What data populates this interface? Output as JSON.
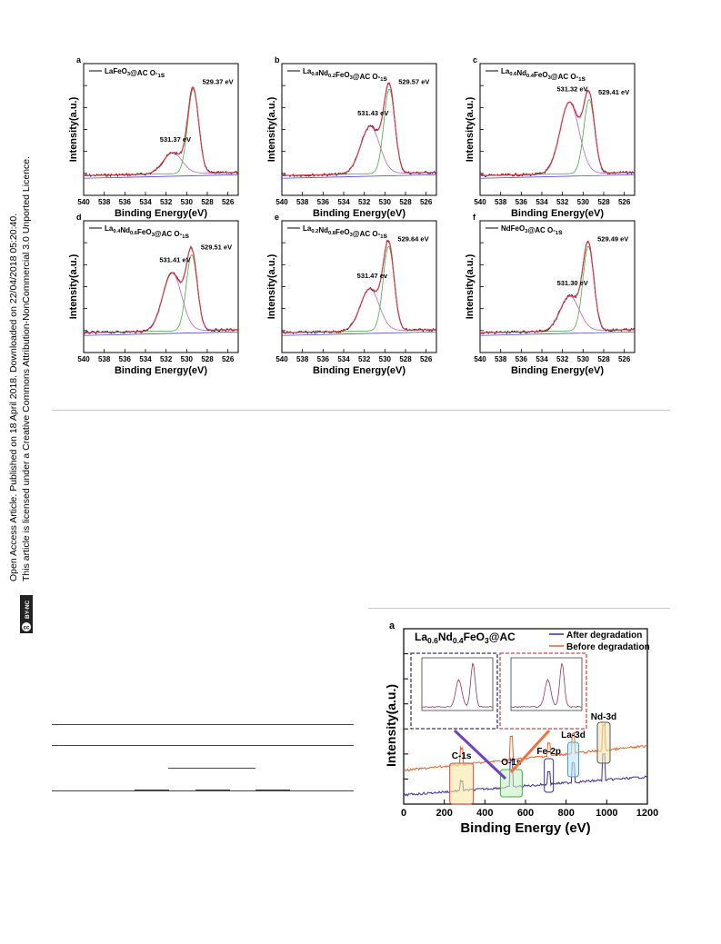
{
  "side_text": {
    "line1": "Open Access Article. Published on 18 April 2018. Downloaded on 22/04/2018 05:20:40.",
    "line2": "This article is licensed under a Creative Commons Attribution-NonCommercial 3.0 Unported Licence.",
    "badge": "BY-NC"
  },
  "chart_data": [
    {
      "type": "line",
      "panel": "a",
      "legend": "LaFeO3@AC O-1s",
      "xlabel": "Binding Energy(eV)",
      "ylabel": "Intensity(a.u.)",
      "xlim": [
        540,
        525
      ],
      "xticks": [
        540,
        538,
        536,
        534,
        532,
        530,
        528,
        526
      ],
      "peaks": [
        {
          "energy": 531.37,
          "label": "531.37 eV",
          "height": 0.2
        },
        {
          "energy": 529.37,
          "label": "529.37 eV",
          "height": 0.8
        }
      ]
    },
    {
      "type": "line",
      "panel": "b",
      "legend": "La0.8Nd0.2FeO3@AC O-1s",
      "xlabel": "Binding Energy(eV)",
      "ylabel": "Intensity(a.u.)",
      "xlim": [
        540,
        525
      ],
      "xticks": [
        540,
        538,
        536,
        534,
        532,
        530,
        528,
        526
      ],
      "peaks": [
        {
          "energy": 531.43,
          "label": "531.43 eV",
          "height": 0.45
        },
        {
          "energy": 529.57,
          "label": "529.57 eV",
          "height": 0.8
        }
      ]
    },
    {
      "type": "line",
      "panel": "c",
      "legend": "La0.6Nd0.4FeO3@AC O-1s",
      "xlabel": "Binding Energy(eV)",
      "ylabel": "Intensity(a.u.)",
      "xlim": [
        540,
        525
      ],
      "xticks": [
        540,
        538,
        536,
        534,
        532,
        530,
        528,
        526
      ],
      "peaks": [
        {
          "energy": 531.32,
          "label": "531.32 eV",
          "height": 0.68
        },
        {
          "energy": 529.41,
          "label": "529.41 eV",
          "height": 0.7
        }
      ]
    },
    {
      "type": "line",
      "panel": "d",
      "legend": "La0.4Nd0.6FeO3@AC O-1s",
      "xlabel": "Binding Energy(eV)",
      "ylabel": "Intensity(a.u.)",
      "xlim": [
        540,
        525
      ],
      "xticks": [
        540,
        538,
        536,
        534,
        532,
        530,
        528,
        526
      ],
      "peaks": [
        {
          "energy": 531.41,
          "label": "531.41 eV",
          "height": 0.55
        },
        {
          "energy": 529.51,
          "label": "529.51 eV",
          "height": 0.72
        }
      ]
    },
    {
      "type": "line",
      "panel": "e",
      "legend": "La0.2Nd0.8FeO3@AC O-1s",
      "xlabel": "Binding Energy(eV)",
      "ylabel": "Intensity(a.u.)",
      "xlim": [
        540,
        525
      ],
      "xticks": [
        540,
        538,
        536,
        534,
        532,
        530,
        528,
        526
      ],
      "peaks": [
        {
          "energy": 531.47,
          "label": "531.47 ev",
          "height": 0.4
        },
        {
          "energy": 529.64,
          "label": "529.64 eV",
          "height": 0.8
        }
      ]
    },
    {
      "type": "line",
      "panel": "f",
      "legend": "NdFeO3@AC O-1s",
      "xlabel": "Binding Energy(eV)",
      "ylabel": "Intensity(a.u.)",
      "xlim": [
        540,
        525
      ],
      "xticks": [
        540,
        538,
        536,
        534,
        532,
        530,
        528,
        526
      ],
      "peaks": [
        {
          "energy": 531.3,
          "label": "531.30 eV",
          "height": 0.33
        },
        {
          "energy": 529.49,
          "label": "529.49 eV",
          "height": 0.8
        }
      ]
    },
    {
      "type": "line",
      "panel": "a",
      "title": "La0.6Nd0.4FeO3@AC",
      "xlabel": "Binding Energy (eV)",
      "ylabel": "Intensity(a.u.)",
      "xlim": [
        0,
        1200
      ],
      "xticks": [
        0,
        200,
        400,
        600,
        800,
        1000,
        1200
      ],
      "series": [
        {
          "name": "After degradation",
          "color": "#3b2f9e"
        },
        {
          "name": "Before degradation",
          "color": "#e8632a"
        }
      ],
      "annotations": [
        "C-1s",
        "O-1s",
        "Fe-2p",
        "La-3d",
        "Nd-3d"
      ]
    }
  ]
}
